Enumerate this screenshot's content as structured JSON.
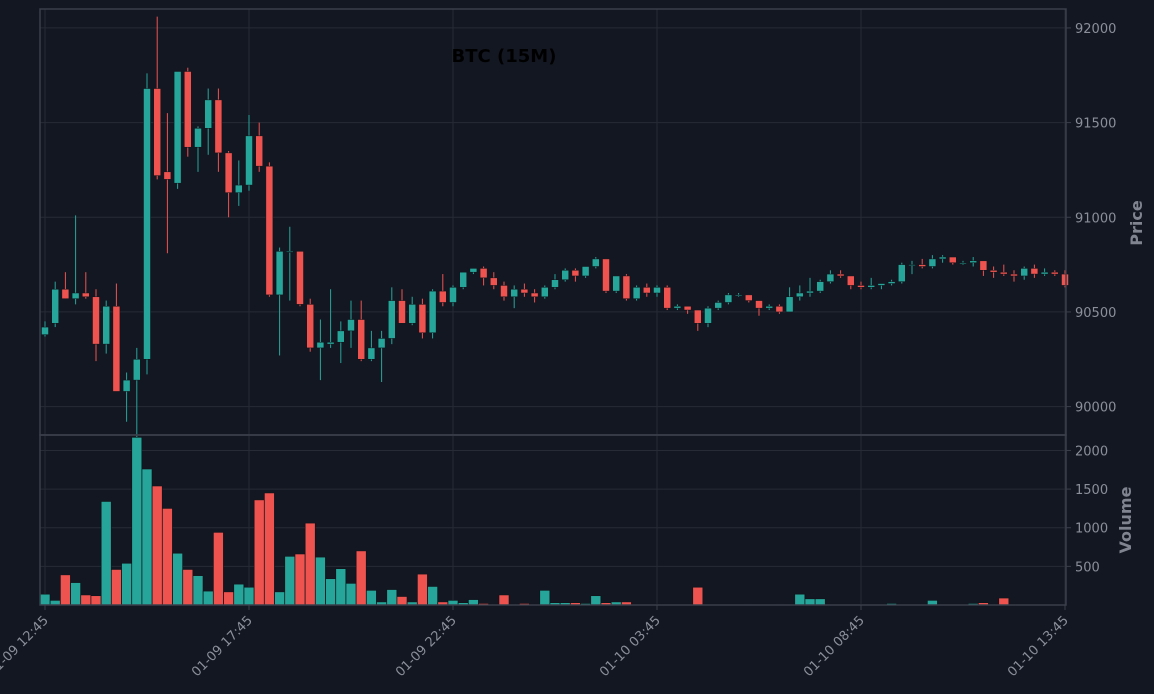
{
  "colors": {
    "background": "#131722",
    "panel_border": "#3a3f4b",
    "grid": "#262b36",
    "up": "#26a69a",
    "down": "#ef5350",
    "tick_text": "#8a8f9a",
    "label_text": "#7f8490",
    "title_text": "#000000"
  },
  "chart_data": [
    {
      "type": "candlestick",
      "title": "BTC (15M)",
      "ylabel": "Price",
      "ylim": [
        89850,
        92100
      ],
      "y_ticks": [
        "90000",
        "90500",
        "91000",
        "91500",
        "92000"
      ],
      "x_ticks": [
        "01-09 12:45",
        "01-09 17:45",
        "01-09 22:45",
        "01-10 03:45",
        "01-10 08:45",
        "01-10 13:45"
      ],
      "grid": true,
      "candles": [
        [
          90380,
          90450,
          90370,
          90420
        ],
        [
          90440,
          90660,
          90420,
          90620
        ],
        [
          90620,
          90710,
          90570,
          90570
        ],
        [
          90570,
          91010,
          90540,
          90600
        ],
        [
          90600,
          90710,
          90570,
          90580
        ],
        [
          90580,
          90620,
          90240,
          90330
        ],
        [
          90330,
          90560,
          90280,
          90530
        ],
        [
          90530,
          90650,
          90080,
          90080
        ],
        [
          90080,
          90180,
          89920,
          90140
        ],
        [
          90140,
          90310,
          89820,
          90250
        ],
        [
          90250,
          91760,
          90170,
          91680
        ],
        [
          91680,
          92060,
          91200,
          91220
        ],
        [
          91240,
          91550,
          90810,
          91200
        ],
        [
          91180,
          91770,
          91150,
          91770
        ],
        [
          91770,
          91790,
          91320,
          91370
        ],
        [
          91370,
          91480,
          91240,
          91470
        ],
        [
          91470,
          91680,
          91330,
          91620
        ],
        [
          91620,
          91680,
          91240,
          91340
        ],
        [
          91340,
          91350,
          91000,
          91130
        ],
        [
          91130,
          91300,
          91060,
          91170
        ],
        [
          91170,
          91540,
          91140,
          91430
        ],
        [
          91430,
          91500,
          91240,
          91270
        ],
        [
          91270,
          91290,
          90580,
          90590
        ],
        [
          90590,
          90840,
          90270,
          90820
        ],
        [
          90820,
          90950,
          90560,
          90820
        ],
        [
          90820,
          90820,
          90530,
          90540
        ],
        [
          90540,
          90570,
          90290,
          90310
        ],
        [
          90310,
          90460,
          90140,
          90340
        ],
        [
          90330,
          90620,
          90310,
          90340
        ],
        [
          90340,
          90450,
          90230,
          90400
        ],
        [
          90400,
          90560,
          90310,
          90460
        ],
        [
          90460,
          90560,
          90240,
          90250
        ],
        [
          90250,
          90400,
          90240,
          90310
        ],
        [
          90310,
          90400,
          90130,
          90360
        ],
        [
          90360,
          90630,
          90330,
          90560
        ],
        [
          90560,
          90620,
          90440,
          90440
        ],
        [
          90440,
          90580,
          90430,
          90540
        ],
        [
          90540,
          90570,
          90360,
          90390
        ],
        [
          90390,
          90620,
          90360,
          90610
        ],
        [
          90610,
          90700,
          90530,
          90550
        ],
        [
          90550,
          90640,
          90530,
          90630
        ],
        [
          90630,
          90710,
          90620,
          90710
        ],
        [
          90710,
          90730,
          90700,
          90730
        ],
        [
          90730,
          90740,
          90640,
          90680
        ],
        [
          90680,
          90710,
          90620,
          90640
        ],
        [
          90640,
          90660,
          90560,
          90580
        ],
        [
          90580,
          90640,
          90520,
          90620
        ],
        [
          90620,
          90650,
          90580,
          90600
        ],
        [
          90600,
          90620,
          90550,
          90580
        ],
        [
          90580,
          90640,
          90570,
          90630
        ],
        [
          90630,
          90700,
          90620,
          90670
        ],
        [
          90670,
          90730,
          90660,
          90720
        ],
        [
          90720,
          90730,
          90660,
          90690
        ],
        [
          90690,
          90740,
          90680,
          90740
        ],
        [
          90740,
          90790,
          90730,
          90780
        ],
        [
          90780,
          90780,
          90600,
          90610
        ],
        [
          90610,
          90690,
          90600,
          90690
        ],
        [
          90690,
          90700,
          90560,
          90570
        ],
        [
          90570,
          90640,
          90560,
          90630
        ],
        [
          90630,
          90650,
          90580,
          90600
        ],
        [
          90600,
          90640,
          90580,
          90630
        ],
        [
          90630,
          90640,
          90510,
          90520
        ],
        [
          90520,
          90540,
          90510,
          90530
        ],
        [
          90530,
          90530,
          90490,
          90510
        ],
        [
          90510,
          90510,
          90400,
          90440
        ],
        [
          90440,
          90530,
          90420,
          90520
        ],
        [
          90520,
          90560,
          90510,
          90550
        ],
        [
          90550,
          90600,
          90540,
          90590
        ],
        [
          90590,
          90600,
          90580,
          90590
        ],
        [
          90590,
          90590,
          90550,
          90560
        ],
        [
          90560,
          90560,
          90480,
          90520
        ],
        [
          90520,
          90540,
          90510,
          90530
        ],
        [
          90530,
          90540,
          90490,
          90500
        ],
        [
          90500,
          90630,
          90500,
          90580
        ],
        [
          90580,
          90640,
          90560,
          90600
        ],
        [
          90600,
          90680,
          90580,
          90610
        ],
        [
          90610,
          90670,
          90600,
          90660
        ],
        [
          90660,
          90720,
          90650,
          90700
        ],
        [
          90700,
          90720,
          90680,
          90690
        ],
        [
          90690,
          90690,
          90620,
          90640
        ],
        [
          90640,
          90660,
          90620,
          90630
        ],
        [
          90630,
          90680,
          90620,
          90640
        ],
        [
          90640,
          90650,
          90620,
          90650
        ],
        [
          90650,
          90670,
          90640,
          90660
        ],
        [
          90660,
          90760,
          90650,
          90750
        ],
        [
          90750,
          90770,
          90700,
          90750
        ],
        [
          90750,
          90780,
          90730,
          90740
        ],
        [
          90740,
          90800,
          90730,
          90780
        ],
        [
          90780,
          90800,
          90760,
          90790
        ],
        [
          90790,
          90790,
          90750,
          90760
        ],
        [
          90760,
          90770,
          90750,
          90760
        ],
        [
          90760,
          90790,
          90740,
          90770
        ],
        [
          90770,
          90770,
          90690,
          90720
        ],
        [
          90720,
          90740,
          90680,
          90710
        ],
        [
          90710,
          90750,
          90690,
          90700
        ],
        [
          90700,
          90720,
          90660,
          90690
        ],
        [
          90690,
          90740,
          90670,
          90730
        ],
        [
          90730,
          90750,
          90680,
          90700
        ],
        [
          90700,
          90730,
          90690,
          90710
        ],
        [
          90710,
          90720,
          90690,
          90700
        ],
        [
          90700,
          90720,
          90630,
          90640
        ]
      ]
    },
    {
      "type": "bar",
      "ylabel": "Volume",
      "ylim": [
        0,
        2200
      ],
      "y_ticks": [
        "500",
        "1000",
        "1500",
        "2000"
      ],
      "values": [
        140,
        60,
        390,
        290,
        130,
        120,
        1340,
        460,
        540,
        2170,
        1760,
        1540,
        1250,
        670,
        460,
        380,
        180,
        940,
        170,
        270,
        230,
        1360,
        1450,
        170,
        630,
        660,
        1060,
        620,
        340,
        470,
        280,
        700,
        190,
        40,
        200,
        110,
        40,
        400,
        240,
        40,
        60,
        30,
        70,
        20,
        10,
        130,
        10,
        20,
        10,
        190,
        30,
        30,
        30,
        20,
        120,
        30,
        40,
        40,
        10,
        10,
        10,
        10,
        10,
        10,
        230,
        10,
        10,
        10,
        10,
        5,
        10,
        10,
        5,
        10,
        140,
        80,
        80,
        10,
        10,
        10,
        10,
        10,
        10,
        20,
        10,
        10,
        10,
        60,
        10,
        10,
        10,
        20,
        30,
        10,
        90,
        10,
        10,
        10,
        10,
        10
      ]
    }
  ]
}
